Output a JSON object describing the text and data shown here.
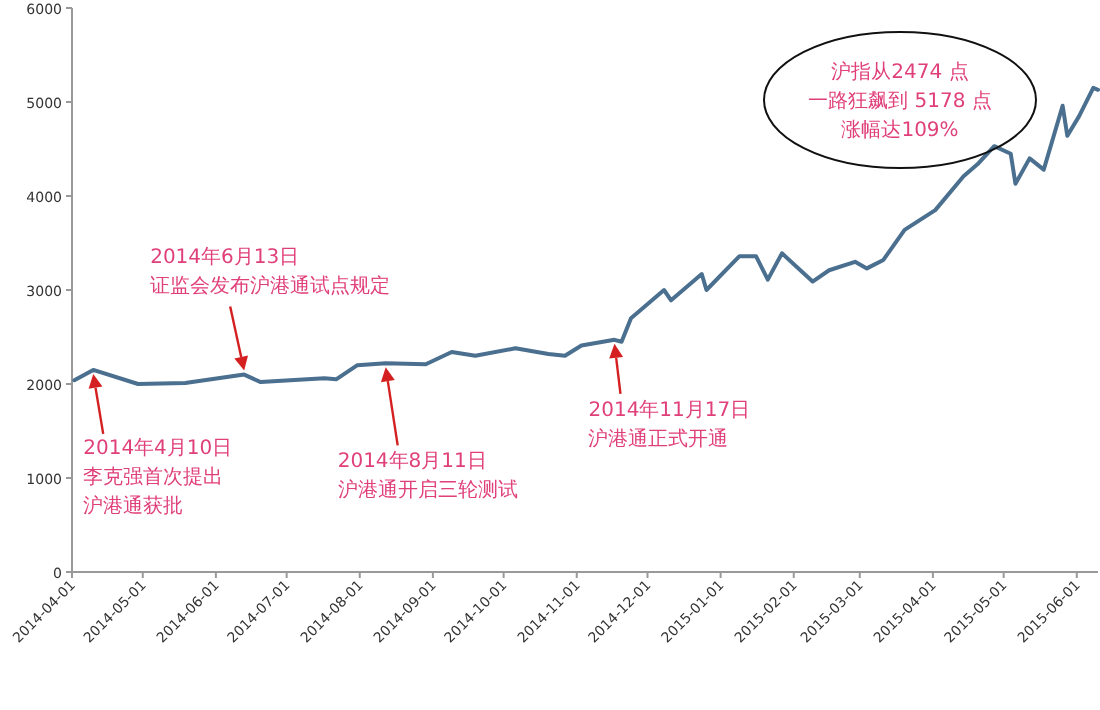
{
  "chart_data": {
    "type": "line",
    "x": [
      "2014-04-02",
      "2014-04-10",
      "2014-04-29",
      "2014-05-19",
      "2014-06-13",
      "2014-06-20",
      "2014-07-17",
      "2014-07-22",
      "2014-07-31",
      "2014-08-12",
      "2014-08-29",
      "2014-09-09",
      "2014-09-19",
      "2014-10-06",
      "2014-10-20",
      "2014-10-27",
      "2014-11-03",
      "2014-11-17",
      "2014-11-20",
      "2014-11-24",
      "2014-12-08",
      "2014-12-11",
      "2014-12-24",
      "2014-12-26",
      "2015-01-09",
      "2015-01-16",
      "2015-01-21",
      "2015-01-27",
      "2015-02-09",
      "2015-02-16",
      "2015-02-27",
      "2015-03-04",
      "2015-03-11",
      "2015-03-20",
      "2015-04-02",
      "2015-04-14",
      "2015-04-20",
      "2015-04-27",
      "2015-05-04",
      "2015-05-06",
      "2015-05-12",
      "2015-05-18",
      "2015-05-26",
      "2015-05-28",
      "2015-06-02",
      "2015-06-08",
      "2015-06-10"
    ],
    "series": [
      {
        "color": "#4a6f8f",
        "values": [
          2040,
          2150,
          2000,
          2010,
          2100,
          2020,
          2060,
          2050,
          2200,
          2220,
          2210,
          2340,
          2300,
          2380,
          2320,
          2300,
          2410,
          2470,
          2450,
          2700,
          3000,
          2890,
          3170,
          3000,
          3360,
          3360,
          3110,
          3390,
          3090,
          3210,
          3300,
          3230,
          3320,
          3640,
          3850,
          4210,
          4340,
          4530,
          4450,
          4130,
          4400,
          4280,
          4960,
          4640,
          4850,
          5150,
          5130
        ]
      }
    ],
    "xlim": [
      "2014-04-01",
      "2015-06-10"
    ],
    "xticks": [
      {
        "value": "2014-04-01",
        "label": "2014-04-01"
      },
      {
        "value": "2014-05-01",
        "label": "2014-05-01"
      },
      {
        "value": "2014-06-01",
        "label": "2014-06-01"
      },
      {
        "value": "2014-07-01",
        "label": "2014-07-01"
      },
      {
        "value": "2014-08-01",
        "label": "2014-08-01"
      },
      {
        "value": "2014-09-01",
        "label": "2014-09-01"
      },
      {
        "value": "2014-10-01",
        "label": "2014-10-01"
      },
      {
        "value": "2014-11-01",
        "label": "2014-11-01"
      },
      {
        "value": "2014-12-01",
        "label": "2014-12-01"
      },
      {
        "value": "2015-01-01",
        "label": "2015-01-01"
      },
      {
        "value": "2015-02-01",
        "label": "2015-02-01"
      },
      {
        "value": "2015-03-01",
        "label": "2015-03-01"
      },
      {
        "value": "2015-04-01",
        "label": "2015-04-01"
      },
      {
        "value": "2015-05-01",
        "label": "2015-05-01"
      },
      {
        "value": "2015-06-01",
        "label": "2015-06-01"
      }
    ],
    "ylim": [
      0,
      6000
    ],
    "yticks": [
      0,
      1000,
      2000,
      3000,
      4000,
      5000,
      6000
    ],
    "grid": false,
    "marker": "none",
    "line_style": "solid",
    "annotations": [
      {
        "text": "2014年4月10日李克强首次提出沪港通获批",
        "x": "2014-04-10",
        "y": 2150
      },
      {
        "text": "2014年6月13日证监会发布沪港通试点规定",
        "x": "2014-06-13",
        "y": 2100
      },
      {
        "text": "2014年8月11日沪港通开启三轮测试",
        "x": "2014-08-12",
        "y": 2220
      },
      {
        "text": "2014年11月17日沪港通正式开通",
        "x": "2014-11-17",
        "y": 2470
      },
      "沪指从2474 点一路狂飙到 5178 点涨幅达109%"
    ]
  }
}
